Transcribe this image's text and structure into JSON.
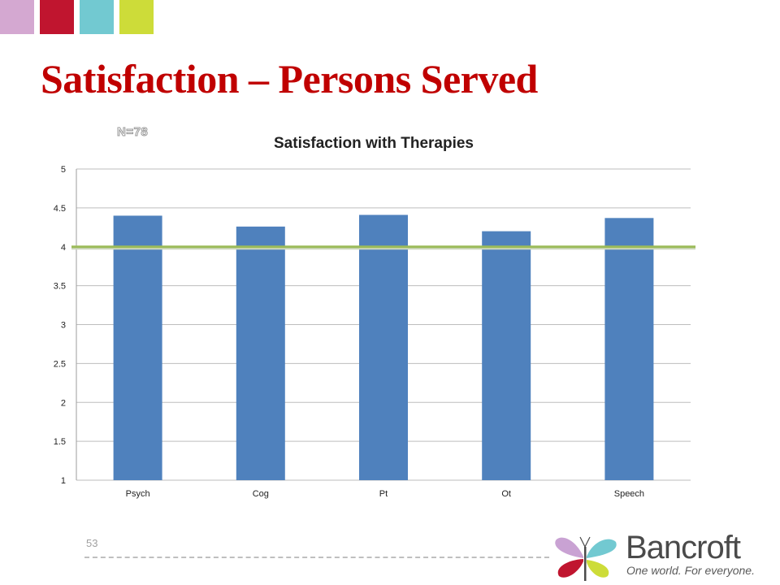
{
  "slide": {
    "title": "Satisfaction – Persons Served",
    "page_number": "53",
    "colors": {
      "title": "#c00000",
      "bar": "#4f81bd",
      "reference_line": "#9bbb59"
    },
    "corner_squares": [
      "#d4a8d1",
      "#c0152f",
      "#72c9d1",
      "#cddc39"
    ]
  },
  "logo": {
    "name": "Bancroft",
    "tagline": "One world. For everyone.",
    "icon": "butterfly-logo-icon"
  },
  "chart_data": {
    "type": "bar",
    "title": "Satisfaction with Therapies",
    "annotation": "N=78",
    "categories": [
      "Psych",
      "Cog",
      "Pt",
      "Ot",
      "Speech"
    ],
    "values": [
      4.4,
      4.26,
      4.41,
      4.2,
      4.37
    ],
    "yticks": [
      "5",
      "4.5",
      "4",
      "3.5",
      "3",
      "2.5",
      "2",
      "1.5",
      "1"
    ],
    "ylim": [
      1,
      5
    ],
    "reference_line": 4,
    "grid": true,
    "legend": "none"
  }
}
